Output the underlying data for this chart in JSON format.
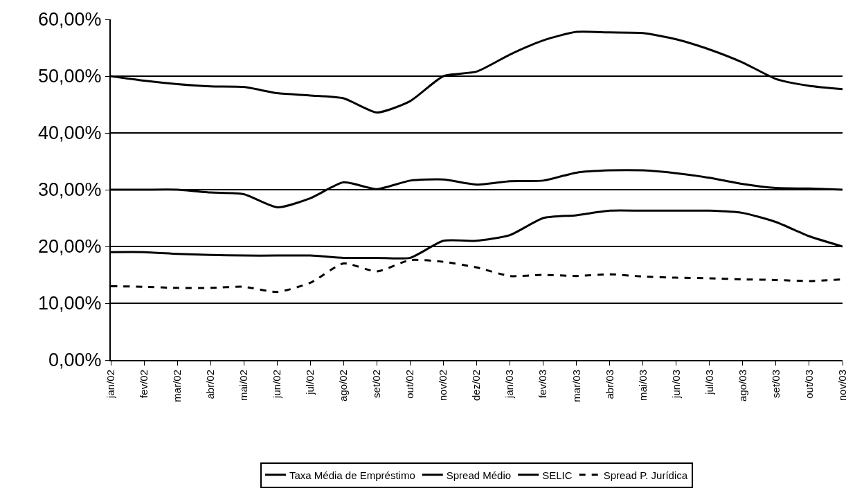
{
  "chart_data": {
    "type": "line",
    "categories": [
      "jan/02",
      "fev/02",
      "mar/02",
      "abr/02",
      "mai/02",
      "jun/02",
      "jul/02",
      "ago/02",
      "set/02",
      "out/02",
      "nov/02",
      "dez/02",
      "jan/03",
      "fev/03",
      "mar/03",
      "abr/03",
      "mai/03",
      "jun/03",
      "jul/03",
      "ago/03",
      "set/03",
      "out/03",
      "nov/03"
    ],
    "series": [
      {
        "name": "Taxa Média de Empréstimo",
        "color": "#000000",
        "line_style": "solid",
        "values": [
          50.0,
          49.2,
          48.6,
          48.2,
          48.1,
          47.0,
          46.6,
          46.1,
          43.6,
          45.6,
          50.0,
          50.8,
          53.8,
          56.3,
          57.8,
          57.7,
          57.6,
          56.5,
          54.7,
          52.4,
          49.5,
          48.3,
          47.7
        ]
      },
      {
        "name": "Spread Médio",
        "color": "#000000",
        "line_style": "solid",
        "values": [
          30.0,
          30.0,
          30.0,
          29.5,
          29.2,
          26.9,
          28.5,
          31.3,
          30.1,
          31.6,
          31.8,
          30.9,
          31.5,
          31.6,
          33.0,
          33.4,
          33.4,
          32.9,
          32.1,
          31.0,
          30.3,
          30.2,
          30.0
        ]
      },
      {
        "name": "SELIC",
        "color": "#000000",
        "line_style": "solid",
        "values": [
          19.0,
          19.0,
          18.7,
          18.5,
          18.4,
          18.4,
          18.4,
          18.0,
          18.0,
          18.0,
          21.0,
          21.0,
          22.0,
          25.0,
          25.5,
          26.3,
          26.3,
          26.3,
          26.3,
          25.9,
          24.3,
          21.8,
          20.0
        ]
      },
      {
        "name": "Spread P. Jurídica",
        "color": "#000000",
        "line_style": "dashed",
        "values": [
          13.0,
          12.9,
          12.7,
          12.7,
          12.9,
          12.0,
          13.6,
          17.0,
          15.6,
          17.6,
          17.3,
          16.3,
          14.8,
          15.0,
          14.8,
          15.1,
          14.7,
          14.5,
          14.4,
          14.2,
          14.1,
          13.9,
          14.2
        ]
      }
    ],
    "ylim": [
      0,
      60
    ],
    "yticks": [
      {
        "value": 0,
        "label": "0,00%"
      },
      {
        "value": 10,
        "label": "10,00%"
      },
      {
        "value": 20,
        "label": "20,00%"
      },
      {
        "value": 30,
        "label": "30,00%"
      },
      {
        "value": 40,
        "label": "40,00%"
      },
      {
        "value": 50,
        "label": "50,00%"
      },
      {
        "value": 60,
        "label": "60,00%"
      }
    ],
    "grid": "y",
    "legend": "bottom",
    "marker": "none"
  }
}
